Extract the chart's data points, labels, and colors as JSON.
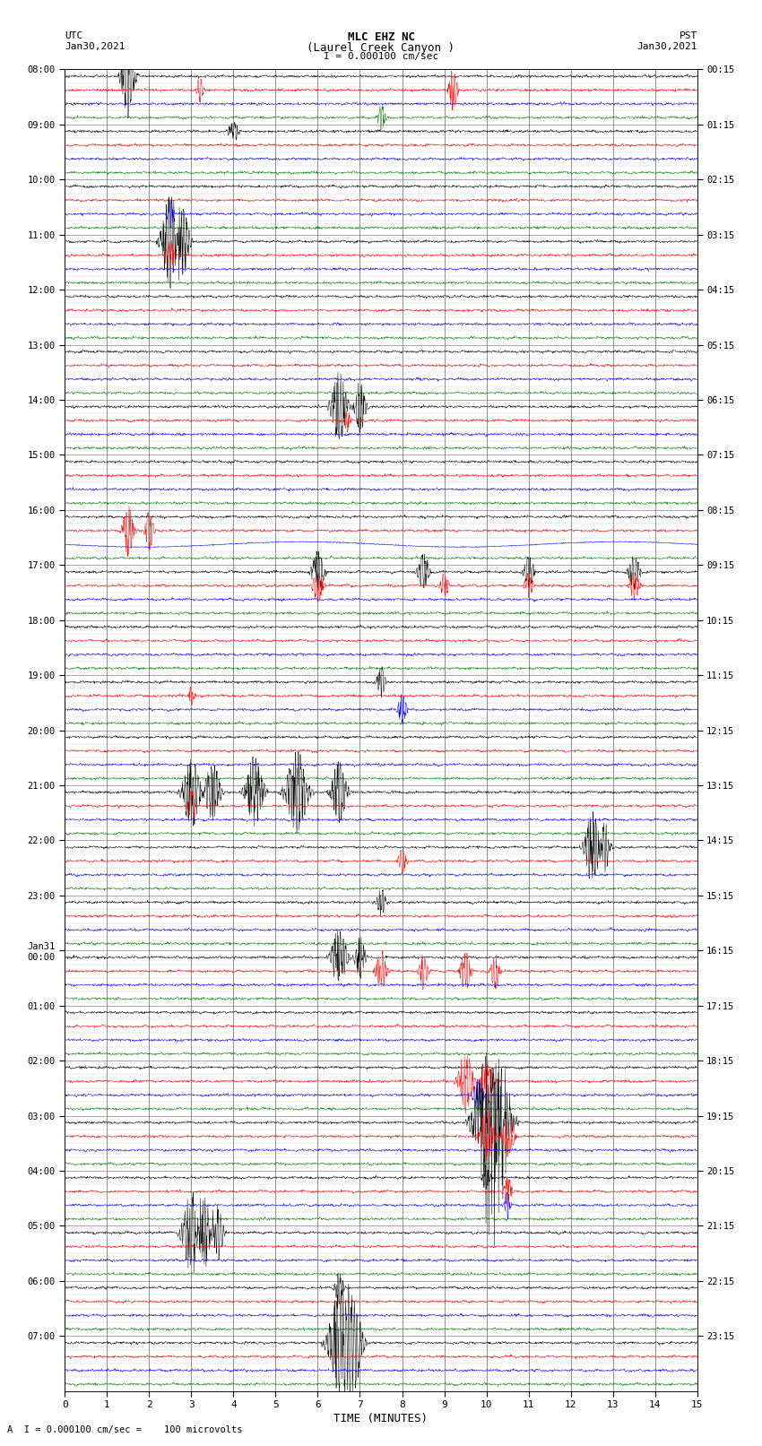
{
  "title_line1": "MLC EHZ NC",
  "title_line2": "(Laurel Creek Canyon )",
  "scale_bar": "I = 0.000100 cm/sec",
  "left_label_top": "UTC",
  "left_label_date": "Jan30,2021",
  "right_label_top": "PST",
  "right_label_date": "Jan30,2021",
  "xlabel": "TIME (MINUTES)",
  "bottom_note": "A  I = 0.000100 cm/sec =    100 microvolts",
  "colors": [
    "black",
    "red",
    "blue",
    "green"
  ],
  "background_color": "white",
  "fig_width": 8.5,
  "fig_height": 16.13,
  "dpi": 100,
  "total_rows": 96,
  "samples_per_row": 1800,
  "utc_labels": [
    "08:00",
    "09:00",
    "10:00",
    "11:00",
    "12:00",
    "13:00",
    "14:00",
    "15:00",
    "16:00",
    "17:00",
    "18:00",
    "19:00",
    "20:00",
    "21:00",
    "22:00",
    "23:00",
    "Jan31\n00:00",
    "01:00",
    "02:00",
    "03:00",
    "04:00",
    "05:00",
    "06:00",
    "07:00"
  ],
  "pst_labels": [
    "00:15",
    "01:15",
    "02:15",
    "03:15",
    "04:15",
    "05:15",
    "06:15",
    "07:15",
    "08:15",
    "09:15",
    "10:15",
    "11:15",
    "12:15",
    "13:15",
    "14:15",
    "15:15",
    "16:15",
    "17:15",
    "18:15",
    "19:15",
    "20:15",
    "21:15",
    "22:15",
    "23:15"
  ]
}
